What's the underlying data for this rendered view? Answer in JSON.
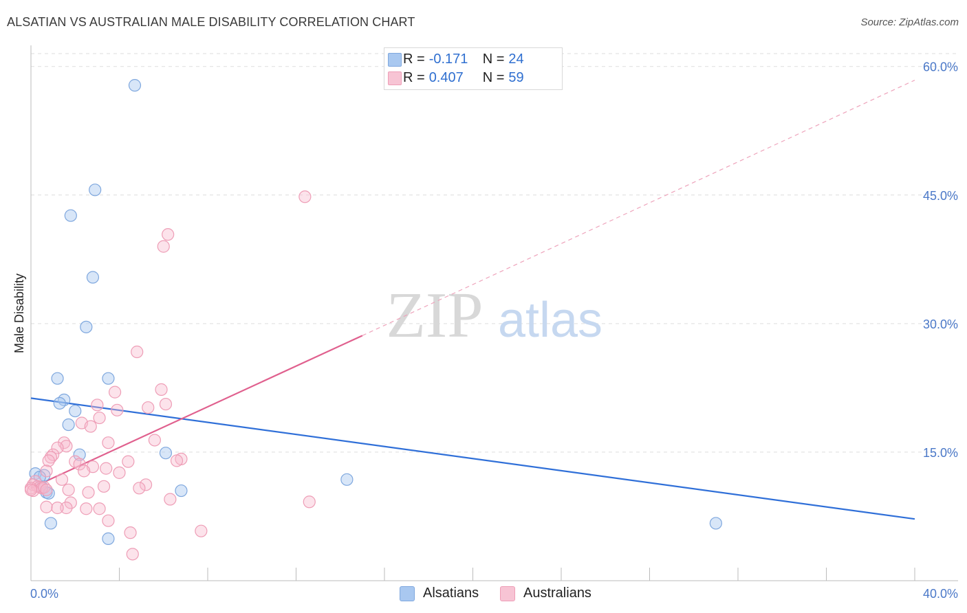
{
  "header": {
    "title": "ALSATIAN VS AUSTRALIAN MALE DISABILITY CORRELATION CHART",
    "source": "Source: ZipAtlas.com"
  },
  "legend": {
    "rows": [
      {
        "r_label": "R =",
        "r_value": "-0.171",
        "n_label": "N =",
        "n_value": "24",
        "color": "#a9c8f0"
      },
      {
        "r_label": "R =",
        "r_value": "0.407",
        "n_label": "N =",
        "n_value": "59",
        "color": "#f7b9cc"
      }
    ]
  },
  "bottom_legend": {
    "items": [
      {
        "label": "Alsatians",
        "color": "#a9c8f0"
      },
      {
        "label": "Australians",
        "color": "#f7b9cc"
      }
    ]
  },
  "watermark": {
    "zip": "ZIP",
    "atlas": "atlas"
  },
  "chart_data": {
    "type": "scatter",
    "title": "ALSATIAN VS AUSTRALIAN MALE DISABILITY CORRELATION CHART",
    "xlabel": "",
    "ylabel": "Male Disability",
    "xlim": [
      0,
      40
    ],
    "ylim": [
      0,
      60
    ],
    "x_tick_labels": [
      "0.0%",
      "40.0%"
    ],
    "y_ticks": [
      15,
      30,
      45,
      60
    ],
    "y_tick_labels": [
      "15.0%",
      "30.0%",
      "45.0%",
      "60.0%"
    ],
    "colors": {
      "alsatians": "#2f6fd8",
      "australians": "#e0608e"
    },
    "series": [
      {
        "name": "Alsatians",
        "points": [
          [
            4.7,
            57.8
          ],
          [
            2.9,
            45.6
          ],
          [
            1.8,
            42.6
          ],
          [
            2.8,
            35.4
          ],
          [
            2.5,
            29.6
          ],
          [
            1.2,
            23.6
          ],
          [
            3.5,
            23.6
          ],
          [
            1.5,
            21.1
          ],
          [
            1.3,
            20.7
          ],
          [
            2.0,
            19.8
          ],
          [
            1.7,
            18.2
          ],
          [
            2.2,
            14.7
          ],
          [
            6.1,
            14.9
          ],
          [
            0.2,
            12.5
          ],
          [
            0.6,
            12.3
          ],
          [
            0.4,
            12.1
          ],
          [
            0.5,
            10.9
          ],
          [
            0.7,
            10.3
          ],
          [
            0.8,
            10.2
          ],
          [
            6.8,
            10.5
          ],
          [
            14.3,
            11.8
          ],
          [
            0.9,
            6.7
          ],
          [
            3.5,
            4.9
          ],
          [
            31.0,
            6.7
          ]
        ],
        "trend": {
          "x1": 0,
          "y1": 21.3,
          "x2": 40,
          "y2": 7.2
        }
      },
      {
        "name": "Australians",
        "points": [
          [
            12.4,
            44.8
          ],
          [
            6.2,
            40.4
          ],
          [
            6.0,
            39.0
          ],
          [
            4.8,
            26.7
          ],
          [
            5.9,
            22.3
          ],
          [
            3.8,
            22.0
          ],
          [
            6.1,
            20.6
          ],
          [
            3.0,
            20.5
          ],
          [
            5.3,
            20.2
          ],
          [
            3.9,
            19.9
          ],
          [
            3.1,
            19.0
          ],
          [
            2.3,
            18.4
          ],
          [
            2.7,
            18.0
          ],
          [
            5.6,
            16.4
          ],
          [
            3.5,
            16.1
          ],
          [
            1.5,
            16.1
          ],
          [
            1.6,
            15.7
          ],
          [
            1.2,
            15.5
          ],
          [
            1.0,
            14.7
          ],
          [
            0.9,
            14.4
          ],
          [
            6.8,
            14.2
          ],
          [
            6.6,
            14.0
          ],
          [
            0.8,
            14.0
          ],
          [
            4.4,
            13.9
          ],
          [
            2.0,
            13.9
          ],
          [
            2.2,
            13.6
          ],
          [
            2.8,
            13.3
          ],
          [
            3.4,
            13.1
          ],
          [
            0.7,
            12.8
          ],
          [
            2.4,
            12.8
          ],
          [
            4.0,
            12.6
          ],
          [
            1.4,
            11.8
          ],
          [
            0.2,
            11.6
          ],
          [
            0.1,
            11.2
          ],
          [
            0.3,
            11.0
          ],
          [
            0.4,
            10.9
          ],
          [
            0.5,
            10.8
          ],
          [
            0.6,
            10.9
          ],
          [
            0.7,
            10.6
          ],
          [
            0.0,
            10.8
          ],
          [
            0.1,
            10.5
          ],
          [
            5.2,
            11.2
          ],
          [
            4.9,
            10.8
          ],
          [
            3.3,
            11.0
          ],
          [
            1.7,
            10.6
          ],
          [
            2.6,
            10.3
          ],
          [
            1.8,
            9.1
          ],
          [
            6.3,
            9.5
          ],
          [
            12.6,
            9.2
          ],
          [
            0.7,
            8.6
          ],
          [
            1.6,
            8.5
          ],
          [
            1.2,
            8.5
          ],
          [
            2.5,
            8.4
          ],
          [
            3.1,
            8.4
          ],
          [
            3.5,
            7.0
          ],
          [
            4.5,
            5.6
          ],
          [
            7.7,
            5.8
          ],
          [
            4.6,
            3.1
          ],
          [
            0.0,
            10.6
          ]
        ],
        "trend": {
          "x1": 0,
          "y1": 10.8,
          "x2": 15,
          "y2": 28.6,
          "dash_x2": 40,
          "dash_y2": 58.4
        }
      }
    ]
  }
}
